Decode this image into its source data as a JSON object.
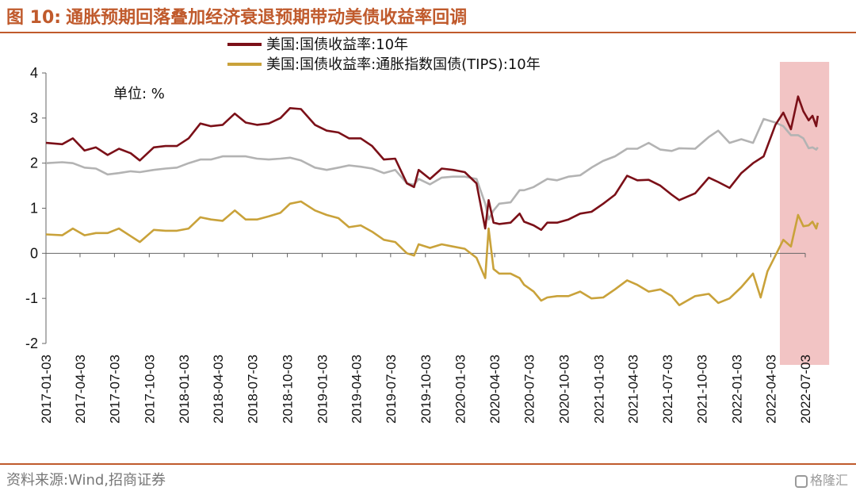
{
  "header": {
    "figure_no": "图 10:",
    "title": "通胀预期回落叠加经济衰退预期带动美债收益率回调"
  },
  "footer": {
    "source": "资料来源:Wind,招商证券",
    "watermark": "格隆汇"
  },
  "chart_data": {
    "type": "line",
    "unit_label": "单位: %",
    "ylim": [
      -2,
      4
    ],
    "yticks": [
      "4",
      "3",
      "2",
      "1",
      "0",
      "-1",
      "-2"
    ],
    "xticks": [
      "2017-01-03",
      "2017-04-03",
      "2017-07-03",
      "2017-10-03",
      "2018-01-03",
      "2018-04-03",
      "2018-07-03",
      "2018-10-03",
      "2019-01-03",
      "2019-04-03",
      "2019-07-03",
      "2019-10-03",
      "2020-01-03",
      "2020-04-03",
      "2020-07-03",
      "2020-10-03",
      "2021-01-03",
      "2021-04-03",
      "2021-07-03",
      "2021-10-03",
      "2022-01-03",
      "2022-04-03",
      "2022-07-03"
    ],
    "legend_position": "top-center",
    "highlight": {
      "from": "2022-05",
      "to": "2022-08",
      "color": "#f2c4c4"
    },
    "series": [
      {
        "name": "美国:国债收益率:10年",
        "color": "#7b1018",
        "points": [
          [
            "2017-01-03",
            2.45
          ],
          [
            "2017-02-15",
            2.42
          ],
          [
            "2017-03-15",
            2.55
          ],
          [
            "2017-04-15",
            2.28
          ],
          [
            "2017-05-15",
            2.35
          ],
          [
            "2017-06-15",
            2.18
          ],
          [
            "2017-07-15",
            2.32
          ],
          [
            "2017-08-15",
            2.22
          ],
          [
            "2017-09-08",
            2.06
          ],
          [
            "2017-10-15",
            2.35
          ],
          [
            "2017-11-15",
            2.38
          ],
          [
            "2017-12-15",
            2.38
          ],
          [
            "2018-01-15",
            2.55
          ],
          [
            "2018-02-15",
            2.88
          ],
          [
            "2018-03-15",
            2.82
          ],
          [
            "2018-04-15",
            2.85
          ],
          [
            "2018-05-17",
            3.1
          ],
          [
            "2018-06-15",
            2.9
          ],
          [
            "2018-07-15",
            2.85
          ],
          [
            "2018-08-15",
            2.88
          ],
          [
            "2018-09-15",
            3.0
          ],
          [
            "2018-10-10",
            3.22
          ],
          [
            "2018-11-08",
            3.2
          ],
          [
            "2018-12-15",
            2.85
          ],
          [
            "2019-01-15",
            2.72
          ],
          [
            "2019-02-15",
            2.68
          ],
          [
            "2019-03-15",
            2.55
          ],
          [
            "2019-04-15",
            2.55
          ],
          [
            "2019-05-15",
            2.38
          ],
          [
            "2019-06-15",
            2.08
          ],
          [
            "2019-07-15",
            2.1
          ],
          [
            "2019-08-15",
            1.55
          ],
          [
            "2019-09-03",
            1.47
          ],
          [
            "2019-09-15",
            1.85
          ],
          [
            "2019-10-15",
            1.65
          ],
          [
            "2019-11-15",
            1.88
          ],
          [
            "2019-12-15",
            1.85
          ],
          [
            "2020-01-15",
            1.8
          ],
          [
            "2020-02-15",
            1.55
          ],
          [
            "2020-03-09",
            0.55
          ],
          [
            "2020-03-18",
            1.18
          ],
          [
            "2020-03-31",
            0.68
          ],
          [
            "2020-04-15",
            0.65
          ],
          [
            "2020-05-15",
            0.68
          ],
          [
            "2020-06-08",
            0.88
          ],
          [
            "2020-06-20",
            0.7
          ],
          [
            "2020-07-15",
            0.62
          ],
          [
            "2020-08-04",
            0.52
          ],
          [
            "2020-08-20",
            0.68
          ],
          [
            "2020-09-15",
            0.68
          ],
          [
            "2020-10-15",
            0.75
          ],
          [
            "2020-11-15",
            0.88
          ],
          [
            "2020-12-15",
            0.92
          ],
          [
            "2021-01-15",
            1.1
          ],
          [
            "2021-02-15",
            1.3
          ],
          [
            "2021-03-19",
            1.72
          ],
          [
            "2021-04-15",
            1.62
          ],
          [
            "2021-05-15",
            1.63
          ],
          [
            "2021-06-15",
            1.5
          ],
          [
            "2021-07-15",
            1.3
          ],
          [
            "2021-08-04",
            1.18
          ],
          [
            "2021-09-15",
            1.33
          ],
          [
            "2021-10-21",
            1.68
          ],
          [
            "2021-11-15",
            1.58
          ],
          [
            "2021-12-15",
            1.45
          ],
          [
            "2022-01-15",
            1.78
          ],
          [
            "2022-02-15",
            2.0
          ],
          [
            "2022-03-15",
            2.15
          ],
          [
            "2022-04-15",
            2.85
          ],
          [
            "2022-05-06",
            3.12
          ],
          [
            "2022-05-26",
            2.75
          ],
          [
            "2022-06-14",
            3.48
          ],
          [
            "2022-06-28",
            3.15
          ],
          [
            "2022-07-12",
            2.95
          ],
          [
            "2022-07-22",
            3.05
          ],
          [
            "2022-08-01",
            2.82
          ],
          [
            "2022-08-05",
            3.05
          ]
        ]
      },
      {
        "name": "美国:国债收益率:通胀指数国债(TIPS):10年",
        "color": "#c9a23a",
        "points": [
          [
            "2017-01-03",
            0.42
          ],
          [
            "2017-02-15",
            0.4
          ],
          [
            "2017-03-15",
            0.55
          ],
          [
            "2017-04-15",
            0.4
          ],
          [
            "2017-05-15",
            0.45
          ],
          [
            "2017-06-15",
            0.45
          ],
          [
            "2017-07-15",
            0.55
          ],
          [
            "2017-08-15",
            0.38
          ],
          [
            "2017-09-08",
            0.25
          ],
          [
            "2017-10-15",
            0.52
          ],
          [
            "2017-11-15",
            0.5
          ],
          [
            "2017-12-15",
            0.5
          ],
          [
            "2018-01-15",
            0.55
          ],
          [
            "2018-02-15",
            0.8
          ],
          [
            "2018-03-15",
            0.75
          ],
          [
            "2018-04-15",
            0.72
          ],
          [
            "2018-05-17",
            0.95
          ],
          [
            "2018-06-15",
            0.75
          ],
          [
            "2018-07-15",
            0.75
          ],
          [
            "2018-08-15",
            0.82
          ],
          [
            "2018-09-15",
            0.9
          ],
          [
            "2018-10-10",
            1.1
          ],
          [
            "2018-11-08",
            1.15
          ],
          [
            "2018-12-15",
            0.95
          ],
          [
            "2019-01-15",
            0.85
          ],
          [
            "2019-02-15",
            0.78
          ],
          [
            "2019-03-15",
            0.58
          ],
          [
            "2019-04-15",
            0.62
          ],
          [
            "2019-05-15",
            0.48
          ],
          [
            "2019-06-15",
            0.3
          ],
          [
            "2019-07-15",
            0.25
          ],
          [
            "2019-08-15",
            0.0
          ],
          [
            "2019-09-03",
            -0.05
          ],
          [
            "2019-09-15",
            0.2
          ],
          [
            "2019-10-15",
            0.12
          ],
          [
            "2019-11-15",
            0.2
          ],
          [
            "2019-12-15",
            0.15
          ],
          [
            "2020-01-15",
            0.1
          ],
          [
            "2020-02-15",
            -0.1
          ],
          [
            "2020-03-09",
            -0.55
          ],
          [
            "2020-03-18",
            0.55
          ],
          [
            "2020-03-31",
            -0.35
          ],
          [
            "2020-04-15",
            -0.45
          ],
          [
            "2020-05-15",
            -0.45
          ],
          [
            "2020-06-08",
            -0.55
          ],
          [
            "2020-06-20",
            -0.7
          ],
          [
            "2020-07-15",
            -0.85
          ],
          [
            "2020-08-04",
            -1.05
          ],
          [
            "2020-08-20",
            -0.98
          ],
          [
            "2020-09-15",
            -0.95
          ],
          [
            "2020-10-15",
            -0.95
          ],
          [
            "2020-11-15",
            -0.85
          ],
          [
            "2020-12-15",
            -1.0
          ],
          [
            "2021-01-15",
            -0.98
          ],
          [
            "2021-02-15",
            -0.8
          ],
          [
            "2021-03-19",
            -0.6
          ],
          [
            "2021-04-15",
            -0.7
          ],
          [
            "2021-05-15",
            -0.85
          ],
          [
            "2021-06-15",
            -0.8
          ],
          [
            "2021-07-15",
            -0.95
          ],
          [
            "2021-08-04",
            -1.15
          ],
          [
            "2021-09-15",
            -0.95
          ],
          [
            "2021-10-21",
            -0.9
          ],
          [
            "2021-11-15",
            -1.1
          ],
          [
            "2021-12-15",
            -1.0
          ],
          [
            "2022-01-15",
            -0.75
          ],
          [
            "2022-02-15",
            -0.45
          ],
          [
            "2022-03-07",
            -0.98
          ],
          [
            "2022-03-25",
            -0.4
          ],
          [
            "2022-04-15",
            -0.05
          ],
          [
            "2022-05-06",
            0.3
          ],
          [
            "2022-05-26",
            0.15
          ],
          [
            "2022-06-14",
            0.85
          ],
          [
            "2022-06-28",
            0.6
          ],
          [
            "2022-07-12",
            0.62
          ],
          [
            "2022-07-22",
            0.7
          ],
          [
            "2022-08-01",
            0.55
          ],
          [
            "2022-08-05",
            0.68
          ]
        ]
      },
      {
        "name": "",
        "color": "#b3b3b3",
        "points": [
          [
            "2017-01-03",
            2.0
          ],
          [
            "2017-02-15",
            2.02
          ],
          [
            "2017-03-15",
            2.0
          ],
          [
            "2017-04-15",
            1.9
          ],
          [
            "2017-05-15",
            1.88
          ],
          [
            "2017-06-15",
            1.75
          ],
          [
            "2017-07-15",
            1.78
          ],
          [
            "2017-08-15",
            1.82
          ],
          [
            "2017-09-08",
            1.8
          ],
          [
            "2017-10-15",
            1.85
          ],
          [
            "2017-11-15",
            1.88
          ],
          [
            "2017-12-15",
            1.9
          ],
          [
            "2018-01-15",
            2.0
          ],
          [
            "2018-02-15",
            2.08
          ],
          [
            "2018-03-15",
            2.08
          ],
          [
            "2018-04-15",
            2.15
          ],
          [
            "2018-05-17",
            2.15
          ],
          [
            "2018-06-15",
            2.15
          ],
          [
            "2018-07-15",
            2.1
          ],
          [
            "2018-08-15",
            2.08
          ],
          [
            "2018-09-15",
            2.1
          ],
          [
            "2018-10-10",
            2.12
          ],
          [
            "2018-11-08",
            2.06
          ],
          [
            "2018-12-15",
            1.9
          ],
          [
            "2019-01-15",
            1.85
          ],
          [
            "2019-02-15",
            1.9
          ],
          [
            "2019-03-15",
            1.95
          ],
          [
            "2019-04-15",
            1.92
          ],
          [
            "2019-05-15",
            1.88
          ],
          [
            "2019-06-15",
            1.78
          ],
          [
            "2019-07-15",
            1.85
          ],
          [
            "2019-08-15",
            1.55
          ],
          [
            "2019-09-03",
            1.52
          ],
          [
            "2019-09-15",
            1.65
          ],
          [
            "2019-10-15",
            1.53
          ],
          [
            "2019-11-15",
            1.68
          ],
          [
            "2019-12-15",
            1.7
          ],
          [
            "2020-01-15",
            1.7
          ],
          [
            "2020-02-15",
            1.65
          ],
          [
            "2020-03-09",
            1.1
          ],
          [
            "2020-03-18",
            0.75
          ],
          [
            "2020-03-31",
            0.95
          ],
          [
            "2020-04-15",
            1.1
          ],
          [
            "2020-05-15",
            1.13
          ],
          [
            "2020-06-08",
            1.4
          ],
          [
            "2020-06-20",
            1.4
          ],
          [
            "2020-07-15",
            1.47
          ],
          [
            "2020-08-04",
            1.57
          ],
          [
            "2020-08-20",
            1.65
          ],
          [
            "2020-09-15",
            1.62
          ],
          [
            "2020-10-15",
            1.7
          ],
          [
            "2020-11-15",
            1.73
          ],
          [
            "2020-12-15",
            1.9
          ],
          [
            "2021-01-15",
            2.05
          ],
          [
            "2021-02-15",
            2.15
          ],
          [
            "2021-03-19",
            2.32
          ],
          [
            "2021-04-15",
            2.32
          ],
          [
            "2021-05-15",
            2.45
          ],
          [
            "2021-06-15",
            2.3
          ],
          [
            "2021-07-15",
            2.27
          ],
          [
            "2021-08-04",
            2.33
          ],
          [
            "2021-09-15",
            2.32
          ],
          [
            "2021-10-21",
            2.58
          ],
          [
            "2021-11-15",
            2.72
          ],
          [
            "2021-12-15",
            2.45
          ],
          [
            "2022-01-15",
            2.53
          ],
          [
            "2022-02-15",
            2.45
          ],
          [
            "2022-03-15",
            2.98
          ],
          [
            "2022-04-15",
            2.9
          ],
          [
            "2022-05-06",
            2.82
          ],
          [
            "2022-05-26",
            2.62
          ],
          [
            "2022-06-14",
            2.62
          ],
          [
            "2022-06-28",
            2.55
          ],
          [
            "2022-07-12",
            2.33
          ],
          [
            "2022-07-22",
            2.35
          ],
          [
            "2022-08-01",
            2.3
          ],
          [
            "2022-08-05",
            2.35
          ]
        ]
      }
    ]
  }
}
